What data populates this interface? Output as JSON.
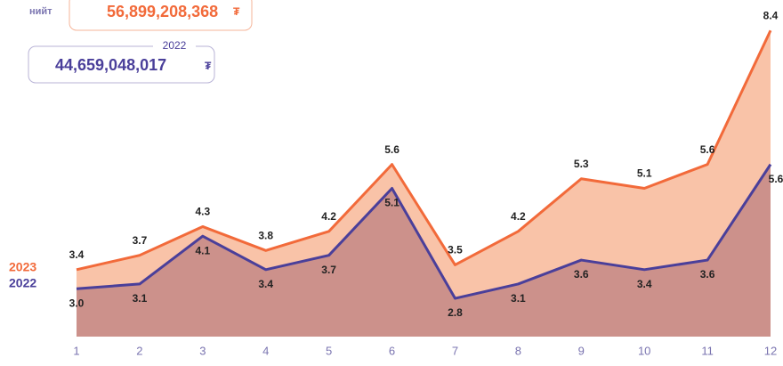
{
  "header": {
    "total_label": "нийт",
    "total_value": "56,899,208,368",
    "total_currency": "₮",
    "prev_label": "2022",
    "prev_value": "44,659,048,017",
    "prev_currency": "₮"
  },
  "chart_data": {
    "type": "area",
    "categories": [
      "1",
      "2",
      "3",
      "4",
      "5",
      "6",
      "7",
      "8",
      "9",
      "10",
      "11",
      "12"
    ],
    "ylim": [
      2,
      9
    ],
    "series": [
      {
        "name": "2023",
        "color": "#f26a3a",
        "fill": "#f9c3a8",
        "values": [
          3.4,
          3.7,
          4.3,
          3.8,
          4.2,
          5.6,
          3.5,
          4.2,
          5.3,
          5.1,
          5.6,
          8.4
        ],
        "value_labels": [
          "3.4",
          "3.7",
          "4.3",
          "3.8",
          "4.2",
          "5.6",
          "3.5",
          "4.2",
          "5.3",
          "5.1",
          "5.6",
          "8.4"
        ]
      },
      {
        "name": "2022",
        "color": "#4a3f9a",
        "fill": "#cc918b",
        "values": [
          3.0,
          3.1,
          4.1,
          3.4,
          3.7,
          5.1,
          2.8,
          3.1,
          3.6,
          3.4,
          3.6,
          5.6
        ],
        "value_labels": [
          "3.0",
          "3.1",
          "4.1",
          "3.4",
          "3.7",
          "5.1",
          "2.8",
          "3.1",
          "3.6",
          "3.4",
          "3.6",
          "5.6"
        ]
      }
    ]
  }
}
